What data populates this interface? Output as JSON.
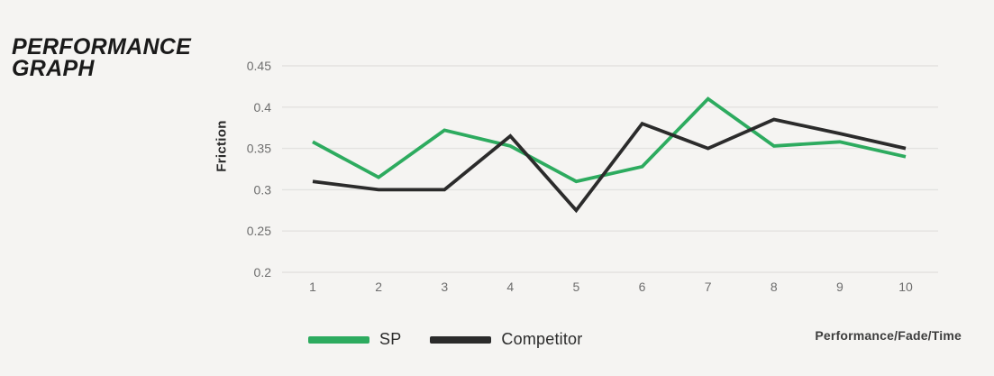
{
  "header": {
    "title_line1": "PERFORMANCE",
    "title_line2": "GRAPH"
  },
  "footer": {
    "axis_note": "Performance/Fade/Time"
  },
  "colors": {
    "background": "#f5f4f2",
    "gridline": "#e3e2e0",
    "tick_text": "#6e6e6e",
    "title_text": "#1a1a1a",
    "sp_green": "#2dab5f",
    "competitor_black": "#2b2b2b"
  },
  "chart_data": {
    "type": "line",
    "title": "",
    "xlabel": "",
    "ylabel": "Friction",
    "x": [
      1,
      2,
      3,
      4,
      5,
      6,
      7,
      8,
      9,
      10
    ],
    "series": [
      {
        "name": "SP",
        "color": "#2dab5f",
        "values": [
          0.358,
          0.315,
          0.372,
          0.353,
          0.31,
          0.328,
          0.41,
          0.353,
          0.358,
          0.34
        ]
      },
      {
        "name": "Competitor",
        "color": "#2b2b2b",
        "values": [
          0.31,
          0.3,
          0.3,
          0.365,
          0.275,
          0.38,
          0.35,
          0.385,
          0.368,
          0.35
        ]
      }
    ],
    "ylim": [
      0.2,
      0.45
    ],
    "yticks": [
      0.45,
      0.4,
      0.35,
      0.3,
      0.25,
      0.2
    ],
    "ytick_labels": [
      "0.45",
      "0.4",
      "0.35",
      "0.3",
      "0.25",
      "0.2"
    ],
    "grid": "horizontal-only",
    "legend_position": "bottom"
  }
}
